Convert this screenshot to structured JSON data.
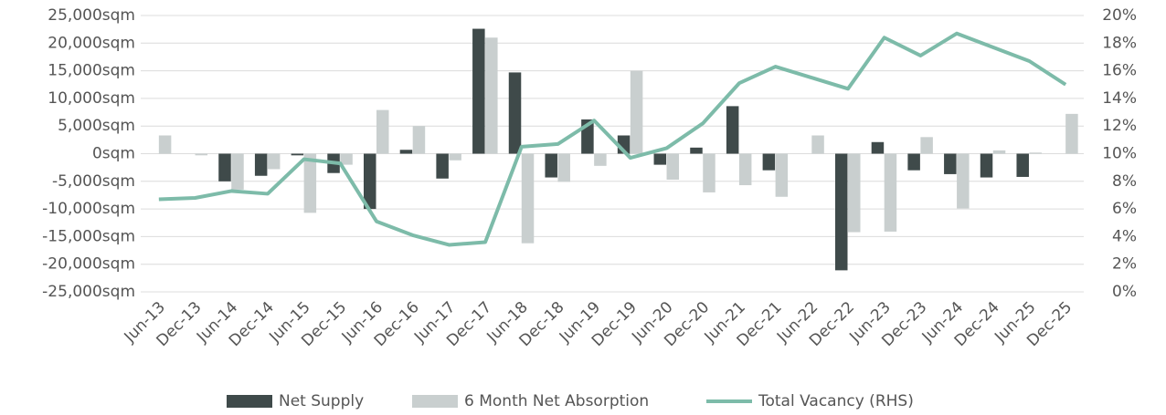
{
  "chart_data": {
    "type": "bar_line",
    "categories": [
      "Jun-13",
      "Dec-13",
      "Jun-14",
      "Dec-14",
      "Jun-15",
      "Dec-15",
      "Jun-16",
      "Dec-16",
      "Jun-17",
      "Dec-17",
      "Jun-18",
      "Dec-18",
      "Jun-19",
      "Dec-19",
      "Jun-20",
      "Dec-20",
      "Jun-21",
      "Dec-21",
      "Jun-22",
      "Dec-22",
      "Jun-23",
      "Dec-23",
      "Jun-24",
      "Dec-24",
      "Jun-25",
      "Dec-25"
    ],
    "series": [
      {
        "name": "Net Supply",
        "type": "bar",
        "color": "#3f4a4a",
        "values": [
          0,
          0,
          -5000,
          -4000,
          -300,
          -3500,
          -10000,
          700,
          -4500,
          22600,
          14700,
          -4300,
          6200,
          3300,
          -2000,
          1100,
          8600,
          -3000,
          0,
          -21100,
          2100,
          -3000,
          -3700,
          -4300,
          -4200,
          0
        ]
      },
      {
        "name": "6 Month Net Absorption",
        "type": "bar",
        "color": "#c9cfcf",
        "values": [
          3300,
          -300,
          -6500,
          -2800,
          -10700,
          -2000,
          7900,
          5000,
          -1200,
          21000,
          -16200,
          -5100,
          -2200,
          15000,
          -4700,
          -7000,
          -5700,
          -7800,
          3300,
          -14200,
          -14100,
          3000,
          -9900,
          600,
          200,
          7200
        ]
      },
      {
        "name": "Total Vacancy (RHS)",
        "type": "line",
        "axis": "y2",
        "color": "#7dbba9",
        "values": [
          6.7,
          6.8,
          7.3,
          7.1,
          9.6,
          9.3,
          5.1,
          4.1,
          3.4,
          3.6,
          10.5,
          10.7,
          12.4,
          9.7,
          10.4,
          12.2,
          15.1,
          16.3,
          15.5,
          14.7,
          18.4,
          17.1,
          18.7,
          17.7,
          16.7,
          15.0
        ]
      }
    ],
    "ylim": [
      -25000,
      25000
    ],
    "yticks": [
      {
        "value": -25000,
        "label": "-25,000sqm"
      },
      {
        "value": -20000,
        "label": "-20,000sqm"
      },
      {
        "value": -15000,
        "label": "-15,000sqm"
      },
      {
        "value": -10000,
        "label": "-10,000sqm"
      },
      {
        "value": -5000,
        "label": "-5,000sqm"
      },
      {
        "value": 0,
        "label": "0sqm"
      },
      {
        "value": 5000,
        "label": "5,000sqm"
      },
      {
        "value": 10000,
        "label": "10,000sqm"
      },
      {
        "value": 15000,
        "label": "15,000sqm"
      },
      {
        "value": 20000,
        "label": "20,000sqm"
      },
      {
        "value": 25000,
        "label": "25,000sqm"
      }
    ],
    "y2lim": [
      0,
      20
    ],
    "y2ticks": [
      {
        "value": 0,
        "label": "0%"
      },
      {
        "value": 2,
        "label": "2%"
      },
      {
        "value": 4,
        "label": "4%"
      },
      {
        "value": 6,
        "label": "6%"
      },
      {
        "value": 8,
        "label": "8%"
      },
      {
        "value": 10,
        "label": "10%"
      },
      {
        "value": 12,
        "label": "12%"
      },
      {
        "value": 14,
        "label": "14%"
      },
      {
        "value": 16,
        "label": "16%"
      },
      {
        "value": 18,
        "label": "18%"
      },
      {
        "value": 20,
        "label": "20%"
      }
    ],
    "grid": true,
    "legend": "bottom"
  }
}
